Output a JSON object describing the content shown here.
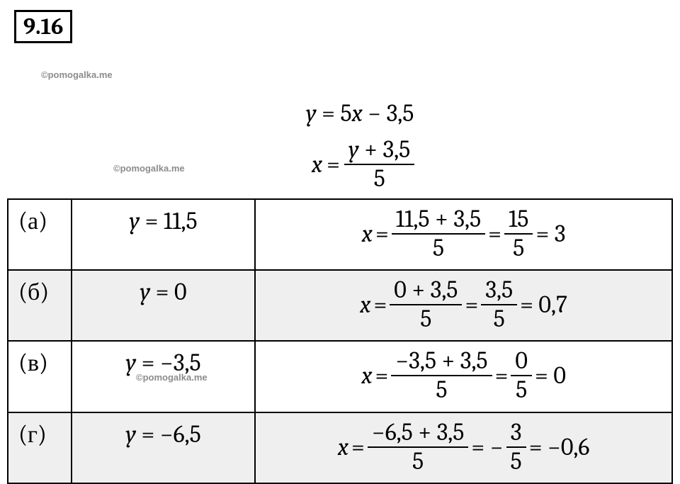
{
  "problem_number": "9.16",
  "watermark": "©pomogalka.me",
  "colors": {
    "background": "#ffffff",
    "text": "#000000",
    "border": "#000000",
    "shade_row": "#efefef",
    "watermark_text": "#8c8c8c"
  },
  "typography": {
    "body_font": "Cambria, Times New Roman, serif",
    "watermark_font": "Arial, sans-serif",
    "base_fontsize": 34,
    "badge_fontsize": 32,
    "watermark_fontsize": 13
  },
  "equations": {
    "main_lhs": "y",
    "main_eq": "=",
    "main_rhs_a": "5",
    "main_rhs_b": "x",
    "main_rhs_c": " − 3,5",
    "inv_lhs": "x",
    "inv_eq": "=",
    "inv_num_a": "y",
    "inv_num_b": " + 3,5",
    "inv_den": "5"
  },
  "rows": [
    {
      "label": "(а)",
      "y_var": "y",
      "y_eq": " = ",
      "y_val": "11,5",
      "x_var": "x",
      "eq": "=",
      "num1": "11,5 + 3,5",
      "den1": "5",
      "num2": "15",
      "den2": "5",
      "result": "= 3",
      "neg_prefix": "",
      "shaded": false
    },
    {
      "label": "(б)",
      "y_var": "y",
      "y_eq": " = ",
      "y_val": "0",
      "x_var": "x",
      "eq": "=",
      "num1": "0 + 3,5",
      "den1": "5",
      "num2": "3,5",
      "den2": "5",
      "result": "= 0,7",
      "neg_prefix": "",
      "shaded": true
    },
    {
      "label": "(в)",
      "y_var": "y",
      "y_eq": " = ",
      "y_val": "−3,5",
      "x_var": "x",
      "eq": "=",
      "num1": "−3,5 + 3,5",
      "den1": "5",
      "num2": "0",
      "den2": "5",
      "result": "= 0",
      "neg_prefix": "",
      "shaded": false
    },
    {
      "label": "(г)",
      "y_var": "y",
      "y_eq": " = ",
      "y_val": "−6,5",
      "x_var": "x",
      "eq": "=",
      "num1": "−6,5 + 3,5",
      "den1": "5",
      "num2": "3",
      "den2": "5",
      "result": "= −0,6",
      "neg_prefix": "= −",
      "shaded": true
    }
  ]
}
